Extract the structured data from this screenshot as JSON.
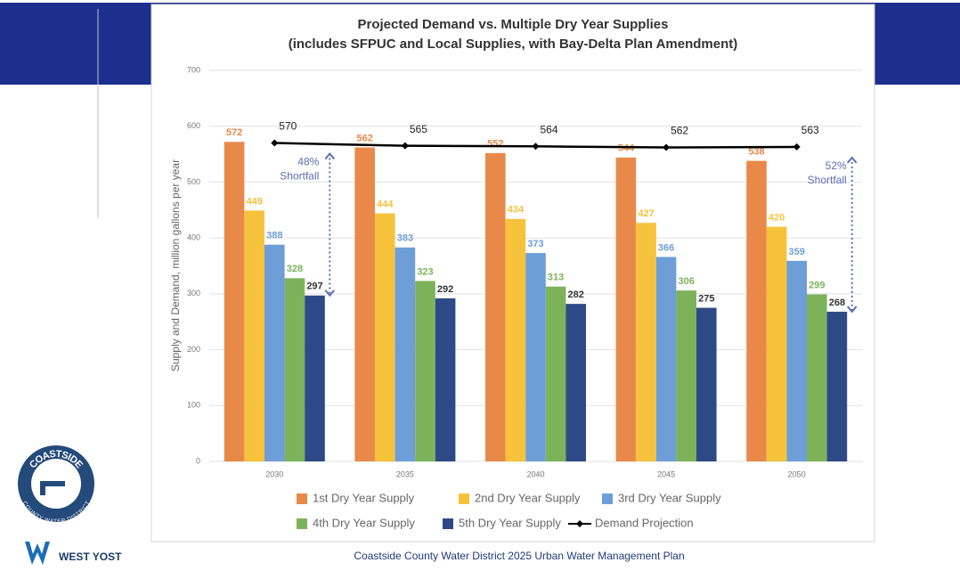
{
  "chart_data": {
    "type": "bar",
    "title": "Projected Demand vs. Multiple Dry Year Supplies",
    "subtitle": "(includes SFPUC and Local Supplies, with Bay-Delta Plan Amendment)",
    "y_label": "Supply and Demand, million gallons per year",
    "categories": [
      "2030",
      "2035",
      "2040",
      "2045",
      "2050"
    ],
    "series": [
      {
        "name": "1st Dry Year Supply",
        "color": "#e8894a",
        "values": [
          572,
          562,
          552,
          544,
          538
        ]
      },
      {
        "name": "2nd Dry Year Supply",
        "color": "#f7c23b",
        "values": [
          449,
          444,
          434,
          427,
          420
        ]
      },
      {
        "name": "3rd Dry Year Supply",
        "color": "#6e9ed8",
        "values": [
          388,
          383,
          373,
          366,
          359
        ]
      },
      {
        "name": "4th Dry Year Supply",
        "color": "#7cb35a",
        "values": [
          328,
          323,
          313,
          306,
          299
        ]
      },
      {
        "name": "5th Dry Year Supply",
        "color": "#2e4a86",
        "values": [
          297,
          292,
          282,
          275,
          268
        ]
      },
      {
        "name": "Demand Projection",
        "color": "#000000",
        "type": "line",
        "values": [
          570,
          565,
          564,
          562,
          563
        ]
      }
    ],
    "ylim": [
      0,
      700
    ],
    "yticks": [
      0,
      100,
      200,
      300,
      400,
      500,
      600,
      700
    ],
    "grid": true,
    "annotations": [
      {
        "lines": [
          "48%",
          "Shortfall"
        ]
      },
      {
        "lines": [
          "52%",
          "Shortfall"
        ]
      }
    ]
  },
  "footer": {
    "text": "Coastside County Water District 2025 Urban Water Management Plan"
  },
  "logos": {
    "district": [
      "COASTSIDE",
      "COUNTY WATER DISTRICT"
    ],
    "firm": "WEST YOST"
  }
}
